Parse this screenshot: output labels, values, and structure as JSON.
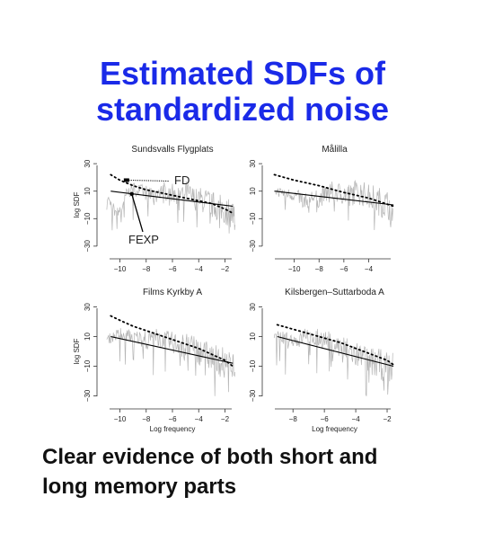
{
  "slide": {
    "title_line1": "Estimated SDFs of",
    "title_line2": "standardized noise",
    "caption_line1": "Clear evidence of both short and",
    "caption_line2": "long memory parts",
    "title_color": "#1a2ae8"
  },
  "annotations": {
    "fd_label": "FD",
    "fexp_label": "FEXP"
  },
  "chart_data": [
    {
      "type": "line",
      "title": "Sundsvalls Flygplats",
      "xlabel": "",
      "ylabel": "log SDF",
      "xticks": [
        "−10",
        "−8",
        "−6",
        "−4",
        "−2"
      ],
      "yticks": [
        "−30",
        "−10",
        "10",
        "30"
      ],
      "xlim": [
        -11.2,
        -0.8
      ],
      "ylim": [
        -34,
        34
      ],
      "series": [
        {
          "style": "gray-spectrum",
          "x": [
            -11.0,
            -10.5,
            -10.0,
            -9.5,
            -9.0,
            -8.5,
            -8.0,
            -7.5,
            -7.0,
            -6.5,
            -6.0,
            -5.5,
            -5.0,
            -4.5,
            -4.0,
            -3.5,
            -3.0,
            -2.5,
            -2.0,
            -1.5,
            -1.2
          ],
          "y": [
            6,
            -2,
            -5,
            8,
            12,
            10,
            9,
            7,
            11,
            10,
            9,
            8,
            10,
            5,
            4,
            3,
            0,
            -2,
            -4,
            -6,
            -10
          ]
        },
        {
          "style": "solid",
          "x": [
            -10.7,
            -1.4
          ],
          "y": [
            10,
            -1
          ]
        },
        {
          "style": "dotted",
          "x": [
            -10.7,
            -10.0,
            -9.0,
            -8.0,
            -7.0,
            -6.0,
            -5.0,
            -4.0,
            -3.0,
            -2.0,
            -1.4
          ],
          "y": [
            22,
            18,
            14,
            11,
            9,
            7,
            5,
            3,
            1,
            -3,
            -6
          ]
        }
      ]
    },
    {
      "type": "line",
      "title": "Målilla",
      "xlabel": "",
      "ylabel": "",
      "xticks": [
        "−10",
        "−8",
        "−6",
        "−4"
      ],
      "yticks": [
        "−30",
        "−10",
        "10",
        "30"
      ],
      "xlim": [
        -12,
        -1.5
      ],
      "ylim": [
        -34,
        34
      ],
      "series": [
        {
          "style": "gray-spectrum",
          "x": [
            -11.5,
            -11.0,
            -10.5,
            -10.0,
            -9.5,
            -9.0,
            -8.5,
            -8.0,
            -7.5,
            -7.0,
            -6.5,
            -6.0,
            -5.5,
            -5.0,
            -4.5,
            -4.0,
            -3.5,
            -3.0,
            -2.5,
            -2.0
          ],
          "y": [
            10,
            9,
            8,
            7,
            5,
            3,
            6,
            4,
            8,
            10,
            9,
            8,
            7,
            10,
            8,
            6,
            4,
            2,
            0,
            -2
          ]
        },
        {
          "style": "solid",
          "x": [
            -11.6,
            -2.0
          ],
          "y": [
            10,
            0
          ]
        },
        {
          "style": "dotted",
          "x": [
            -11.6,
            -10.0,
            -8.0,
            -6.0,
            -4.0,
            -2.0
          ],
          "y": [
            22,
            18,
            14,
            9,
            5,
            -1
          ]
        }
      ]
    },
    {
      "type": "line",
      "title": "Films Kyrkby A",
      "xlabel": "",
      "ylabel": "log SDF",
      "xticks": [
        "−10",
        "−8",
        "−6",
        "−4",
        "−2"
      ],
      "yticks": [
        "−30",
        "−10",
        "10",
        "30"
      ],
      "xlim": [
        -11.2,
        -0.8
      ],
      "ylim": [
        -34,
        34
      ],
      "series": [
        {
          "style": "gray-spectrum",
          "x": [
            -11.0,
            -10.5,
            -10.0,
            -9.5,
            -9.0,
            -8.5,
            -8.0,
            -7.5,
            -7.0,
            -6.5,
            -6.0,
            -5.5,
            -5.0,
            -4.5,
            -4.0,
            -3.5,
            -3.0,
            -2.5,
            -2.0,
            -1.5,
            -1.2
          ],
          "y": [
            8,
            10,
            12,
            11,
            10,
            9,
            8,
            10,
            9,
            7,
            6,
            5,
            4,
            2,
            0,
            -2,
            -4,
            -6,
            -8,
            -10,
            -12
          ]
        },
        {
          "style": "solid",
          "x": [
            -10.7,
            -1.4
          ],
          "y": [
            10,
            -8
          ]
        },
        {
          "style": "dotted",
          "x": [
            -10.7,
            -10.0,
            -9.0,
            -8.0,
            -7.0,
            -6.0,
            -5.0,
            -4.0,
            -3.0,
            -2.0,
            -1.4
          ],
          "y": [
            24,
            21,
            17,
            14,
            11,
            8,
            5,
            2,
            -2,
            -6,
            -10
          ]
        }
      ]
    },
    {
      "type": "line",
      "title": "Kilsbergen–Suttarboda A",
      "xlabel": "",
      "ylabel": "",
      "xticks": [
        "−8",
        "−6",
        "−4",
        "−2"
      ],
      "yticks": [
        "−30",
        "−10",
        "10",
        "30"
      ],
      "xlim": [
        -9.5,
        -1.2
      ],
      "ylim": [
        -34,
        34
      ],
      "series": [
        {
          "style": "gray-spectrum",
          "x": [
            -9.2,
            -8.8,
            -8.4,
            -8.0,
            -7.6,
            -7.2,
            -6.8,
            -6.4,
            -6.0,
            -5.6,
            -5.2,
            -4.8,
            -4.4,
            -4.0,
            -3.6,
            -3.2,
            -2.8,
            -2.4,
            -2.0,
            -1.6
          ],
          "y": [
            11,
            10,
            9,
            8,
            7,
            12,
            10,
            9,
            8,
            6,
            4,
            2,
            0,
            -2,
            -4,
            -6,
            -8,
            -9,
            -10,
            -12
          ]
        },
        {
          "style": "solid",
          "x": [
            -9.0,
            -1.6
          ],
          "y": [
            10,
            -10
          ]
        },
        {
          "style": "dotted",
          "x": [
            -9.0,
            -8.0,
            -7.0,
            -6.0,
            -5.0,
            -4.0,
            -3.0,
            -2.0,
            -1.6
          ],
          "y": [
            18,
            15,
            12,
            9,
            6,
            2,
            -2,
            -6,
            -9
          ]
        }
      ]
    }
  ],
  "bottom_axis_label": "Log frequency"
}
